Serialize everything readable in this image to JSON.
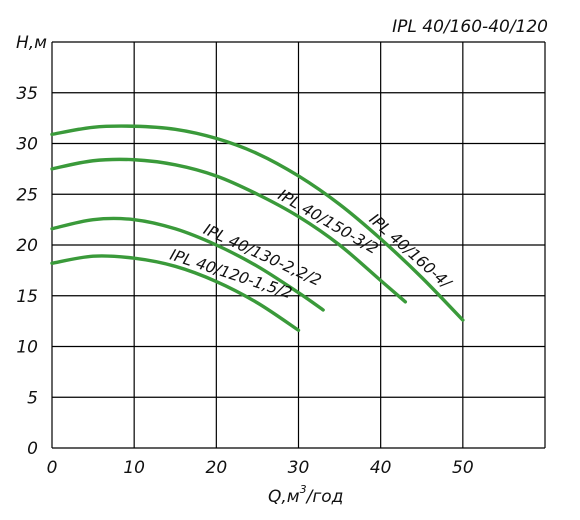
{
  "chart_data": {
    "type": "line",
    "title": "IPL 40/160-40/120",
    "xlabel": "Q,м³/год",
    "xlabel_main": "Q,м",
    "xlabel_sup": "3",
    "xlabel_tail": "/год",
    "ylabel": "H,м",
    "xlim": [
      0,
      60
    ],
    "ylim": [
      0,
      40
    ],
    "x_ticks": [
      0,
      10,
      20,
      30,
      40,
      50
    ],
    "y_ticks": [
      0,
      5,
      10,
      15,
      20,
      25,
      30,
      35
    ],
    "grid": true,
    "curve_color": "#3a9a3a",
    "series": [
      {
        "name": "IPL 40/160-4/",
        "x": [
          0,
          5,
          10,
          15,
          20,
          25,
          30,
          35,
          40,
          45,
          50
        ],
        "y": [
          30.9,
          31.6,
          31.7,
          31.4,
          30.5,
          29.0,
          26.8,
          24.0,
          20.6,
          16.8,
          12.6
        ]
      },
      {
        "name": "IPL 40/150-3/2",
        "x": [
          0,
          5,
          10,
          15,
          20,
          25,
          30,
          35,
          40,
          43
        ],
        "y": [
          27.5,
          28.3,
          28.4,
          27.9,
          26.8,
          25.0,
          22.8,
          20.0,
          16.5,
          14.4
        ]
      },
      {
        "name": "IPL 40/130-2,2/2",
        "x": [
          0,
          5,
          10,
          15,
          20,
          25,
          30,
          33
        ],
        "y": [
          21.6,
          22.5,
          22.5,
          21.6,
          20.0,
          17.9,
          15.3,
          13.6
        ]
      },
      {
        "name": "IPL 40/120-1,5/2",
        "x": [
          0,
          5,
          10,
          15,
          20,
          25,
          30
        ],
        "y": [
          18.2,
          18.9,
          18.7,
          17.9,
          16.4,
          14.3,
          11.6
        ]
      }
    ]
  }
}
